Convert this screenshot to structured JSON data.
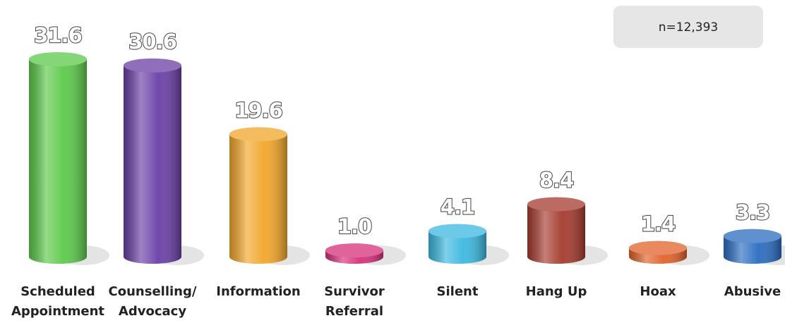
{
  "chart_data": {
    "type": "bar",
    "categories": [
      "Scheduled\nAppointment",
      "Counselling/\nAdvocacy",
      "Information",
      "Survivor\nReferral",
      "Silent",
      "Hang Up",
      "Hoax",
      "Abusive"
    ],
    "values": [
      31.6,
      30.6,
      19.6,
      1.0,
      4.1,
      8.4,
      1.4,
      3.3
    ],
    "value_labels": [
      "31.6",
      "30.6",
      "19.6",
      "1.0",
      "4.1",
      "8.4",
      "1.4",
      "3.3"
    ],
    "colors": [
      "#5cc94a",
      "#6a3fa6",
      "#f2a62a",
      "#d6307a",
      "#3bb8e0",
      "#a53a2e",
      "#e0622a",
      "#2a6cc0"
    ],
    "annotation": "n=12,393"
  }
}
